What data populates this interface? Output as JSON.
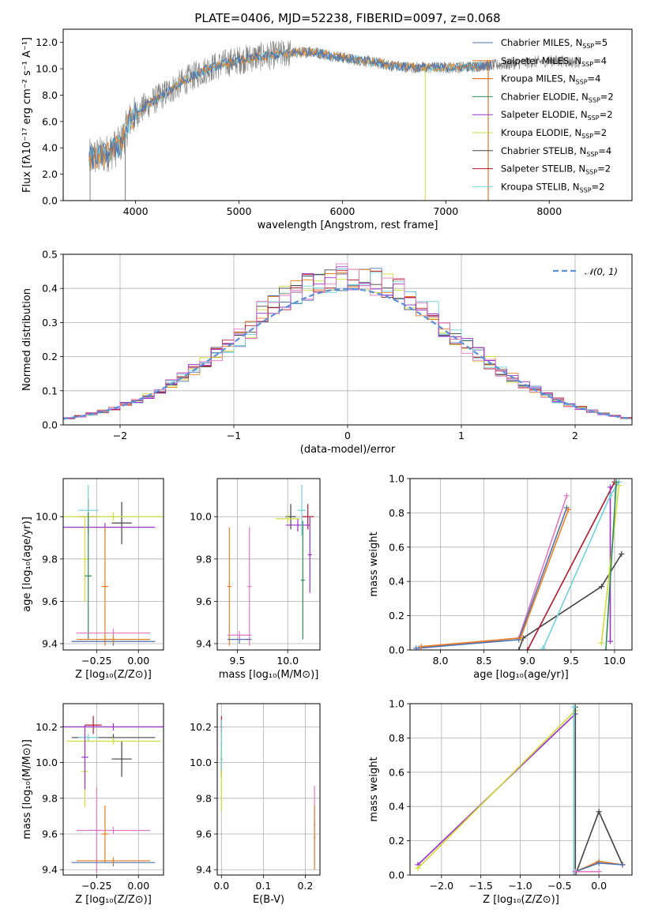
{
  "figure": {
    "title": "PLATE=0406, MJD=52238, FIBERID=0097, z=0.068"
  },
  "colors": {
    "data": "#808080",
    "Chabrier MILES": "#4c72b0",
    "Salpeter MILES": "#e67e22",
    "Kroupa MILES": "#d55e00",
    "Chabrier ELODIE": "#2e8b57",
    "Salpeter ELODIE": "#9b30c8",
    "Kroupa ELODIE": "#cddc39",
    "Chabrier STELIB": "#444444",
    "Salpeter STELIB": "#b2182b",
    "Kroupa STELIB": "#6fd0dc",
    "pink": "#e377c2",
    "normal": "#5b8fd6"
  },
  "chart_data": [
    {
      "id": "spectrum",
      "type": "line",
      "title": "PLATE=0406, MJD=52238, FIBERID=0097, z=0.068",
      "xlabel": "wavelength [Angstrom, rest frame]",
      "ylabel": "Flux [fλ10⁻¹⁷ erg cm⁻² s⁻¹ A⁻¹]",
      "xlim": [
        3300,
        8800
      ],
      "ylim": [
        0,
        13
      ],
      "xticks": [
        4000,
        5000,
        6000,
        7000,
        8000
      ],
      "yticks": [
        0,
        2,
        4,
        6,
        8,
        10,
        12
      ],
      "grid": false,
      "legend_position": "top-right",
      "continuum": [
        [
          3550,
          3.2
        ],
        [
          3700,
          3.5
        ],
        [
          3850,
          4.2
        ],
        [
          3950,
          6.2
        ],
        [
          4100,
          7.2
        ],
        [
          4300,
          8.2
        ],
        [
          4500,
          9.2
        ],
        [
          4700,
          10.0
        ],
        [
          4900,
          10.5
        ],
        [
          5100,
          10.8
        ],
        [
          5300,
          11.0
        ],
        [
          5500,
          11.2
        ],
        [
          5700,
          11.3
        ],
        [
          5900,
          11.0
        ],
        [
          6100,
          10.7
        ],
        [
          6300,
          10.5
        ],
        [
          6500,
          10.2
        ],
        [
          6700,
          10.1
        ],
        [
          6900,
          10.1
        ],
        [
          7100,
          10.1
        ],
        [
          7300,
          10.2
        ],
        [
          7500,
          10.3
        ],
        [
          7700,
          10.4
        ],
        [
          8000,
          10.6
        ],
        [
          8300,
          10.5
        ]
      ],
      "legend": [
        {
          "label": "Chabrier MILES, N",
          "sub": "SSP",
          "suffix": "=5",
          "color": "Chabrier MILES"
        },
        {
          "label": "Salpeter MILES, N",
          "sub": "SSP",
          "suffix": "=4",
          "color": "Salpeter MILES"
        },
        {
          "label": "Kroupa MILES, N",
          "sub": "SSP",
          "suffix": "=4",
          "color": "Kroupa MILES"
        },
        {
          "label": "Chabrier ELODIE, N",
          "sub": "SSP",
          "suffix": "=2",
          "color": "Chabrier ELODIE"
        },
        {
          "label": "Salpeter ELODIE, N",
          "sub": "SSP",
          "suffix": "=2",
          "color": "Salpeter ELODIE"
        },
        {
          "label": "Kroupa ELODIE, N",
          "sub": "SSP",
          "suffix": "=2",
          "color": "Kroupa ELODIE"
        },
        {
          "label": "Chabrier STELIB, N",
          "sub": "SSP",
          "suffix": "=4",
          "color": "Chabrier STELIB"
        },
        {
          "label": "Salpeter STELIB, N",
          "sub": "SSP",
          "suffix": "=2",
          "color": "Salpeter STELIB"
        },
        {
          "label": "Kroupa STELIB, N",
          "sub": "SSP",
          "suffix": "=2",
          "color": "Kroupa STELIB"
        }
      ]
    },
    {
      "id": "residuals",
      "type": "histogram",
      "xlabel": "(data-model)/error",
      "ylabel": "Normed distribution",
      "xlim": [
        -2.5,
        2.5
      ],
      "ylim": [
        0,
        0.5
      ],
      "xticks": [
        -2,
        -1,
        0,
        1,
        2
      ],
      "xticklabels": [
        "−2",
        "−1",
        "0",
        "1",
        "2"
      ],
      "yticks": [
        0.0,
        0.1,
        0.2,
        0.3,
        0.4,
        0.5
      ],
      "grid": true,
      "legend_position": "top-right",
      "legend_label": "𝒩(0, 1)",
      "bin_width": 0.1,
      "series_colors": [
        "Chabrier MILES",
        "Salpeter MILES",
        "Kroupa ELODIE",
        "Chabrier STELIB",
        "Salpeter STELIB",
        "Kroupa STELIB",
        "Salpeter ELODIE",
        "pink"
      ]
    },
    {
      "id": "age-vs-Z",
      "type": "scatter",
      "xlabel": "Z [log₁₀(Z/Z⊙)]",
      "ylabel": "age  [log₁₀(age/yr)]",
      "xlim": [
        -0.45,
        0.15
      ],
      "ylim": [
        9.37,
        10.18
      ],
      "xticks": [
        -0.25,
        0.0
      ],
      "xticklabels": [
        "−0.25",
        "0.00"
      ],
      "yticks": [
        9.4,
        9.6,
        9.8,
        10.0
      ],
      "yticklabels": [
        "9.4",
        "9.6",
        "9.8",
        "10.0"
      ],
      "grid": true,
      "points": [
        {
          "x": -0.1,
          "y": 9.97,
          "xerr": 0.06,
          "yerr": 0.1,
          "color": "Chabrier STELIB"
        },
        {
          "x": -0.3,
          "y": 10.0,
          "xerr": 0.05,
          "yerr": 0.08,
          "color": "Salpeter STELIB"
        },
        {
          "x": -0.2,
          "y": 9.95,
          "xerr": 0.3,
          "yerr": 0.02,
          "color": "Salpeter ELODIE"
        },
        {
          "x": -0.15,
          "y": 10.0,
          "xerr": 0.3,
          "yerr": 0.02,
          "color": "Kroupa ELODIE"
        },
        {
          "x": -0.3,
          "y": 10.03,
          "xerr": 0.06,
          "yerr": 0.12,
          "color": "Kroupa STELIB"
        },
        {
          "x": -0.32,
          "y": 9.8,
          "xerr": 0.02,
          "yerr": 0.2,
          "color": "Kroupa ELODIE"
        },
        {
          "x": -0.3,
          "y": 9.72,
          "xerr": 0.02,
          "yerr": 0.3,
          "color": "Chabrier ELODIE"
        },
        {
          "x": -0.2,
          "y": 9.67,
          "xerr": 0.02,
          "yerr": 0.28,
          "color": "Salpeter MILES"
        },
        {
          "x": -0.15,
          "y": 9.45,
          "xerr": 0.22,
          "yerr": 0.02,
          "color": "pink"
        },
        {
          "x": -0.15,
          "y": 9.41,
          "xerr": 0.25,
          "yerr": 0.02,
          "color": "Chabrier MILES"
        },
        {
          "x": -0.15,
          "y": 9.42,
          "xerr": 0.22,
          "yerr": 0.02,
          "color": "Salpeter MILES"
        }
      ]
    },
    {
      "id": "age-vs-mass",
      "type": "scatter",
      "xlabel": "mass [log₁₀(M/M⊙)]",
      "ylabel": "",
      "xlim": [
        9.3,
        10.32
      ],
      "ylim": [
        9.37,
        10.18
      ],
      "xticks": [
        9.5,
        10.0
      ],
      "xticklabels": [
        "9.5",
        "10.0"
      ],
      "yticks": [
        9.4,
        9.6,
        9.8,
        10.0
      ],
      "yticklabels": [
        "9.4",
        "9.6",
        "9.8",
        "10.0"
      ],
      "grid": true,
      "points": [
        {
          "x": 10.03,
          "y": 10.0,
          "xerr": 0.05,
          "yerr": 0.06,
          "color": "Chabrier STELIB"
        },
        {
          "x": 10.2,
          "y": 10.0,
          "xerr": 0.06,
          "yerr": 0.06,
          "color": "Salpeter STELIB"
        },
        {
          "x": 10.1,
          "y": 9.96,
          "xerr": 0.12,
          "yerr": 0.03,
          "color": "Salpeter ELODIE"
        },
        {
          "x": 10.0,
          "y": 9.99,
          "xerr": 0.12,
          "yerr": 0.02,
          "color": "Kroupa ELODIE"
        },
        {
          "x": 10.14,
          "y": 10.03,
          "xerr": 0.04,
          "yerr": 0.12,
          "color": "Kroupa STELIB"
        },
        {
          "x": 10.15,
          "y": 9.7,
          "xerr": 0.02,
          "yerr": 0.28,
          "color": "Chabrier ELODIE"
        },
        {
          "x": 10.22,
          "y": 9.82,
          "xerr": 0.02,
          "yerr": 0.18,
          "color": "Salpeter ELODIE"
        },
        {
          "x": 9.42,
          "y": 9.67,
          "xerr": 0.02,
          "yerr": 0.28,
          "color": "Salpeter MILES"
        },
        {
          "x": 9.62,
          "y": 9.67,
          "xerr": 0.02,
          "yerr": 0.28,
          "color": "pink"
        },
        {
          "x": 9.52,
          "y": 9.42,
          "xerr": 0.12,
          "yerr": 0.02,
          "color": "Chabrier MILES"
        },
        {
          "x": 9.52,
          "y": 9.44,
          "xerr": 0.12,
          "yerr": 0.02,
          "color": "pink"
        }
      ]
    },
    {
      "id": "massweight-vs-age",
      "type": "line",
      "xlabel": "age  [log₁₀(age/yr)]",
      "ylabel": "mass weight",
      "xlim": [
        7.65,
        10.2
      ],
      "ylim": [
        0,
        1.0
      ],
      "xticks": [
        8.0,
        8.5,
        9.0,
        9.5,
        10.0
      ],
      "xticklabels": [
        "8.0",
        "8.5",
        "9.0",
        "9.5",
        "10.0"
      ],
      "yticks": [
        0.0,
        0.2,
        0.4,
        0.6,
        0.8,
        1.0
      ],
      "yticklabels": [
        "0.0",
        "0.2",
        "0.4",
        "0.6",
        "0.8",
        "1.0"
      ],
      "grid": true,
      "series": [
        {
          "color": "Chabrier STELIB",
          "x": [
            8.9,
            8.95,
            9.85,
            10.08
          ],
          "y": [
            0.0,
            0.07,
            0.37,
            0.56
          ]
        },
        {
          "color": "Salpeter STELIB",
          "x": [
            9.0,
            10.0
          ],
          "y": [
            0.0,
            0.98
          ]
        },
        {
          "color": "Salpeter ELODIE",
          "x": [
            9.95,
            9.95
          ],
          "y": [
            0.05,
            0.95
          ]
        },
        {
          "color": "Kroupa ELODIE",
          "x": [
            9.85,
            10.05
          ],
          "y": [
            0.04,
            0.96
          ]
        },
        {
          "color": "Kroupa STELIB",
          "x": [
            9.18,
            9.95,
            10.05
          ],
          "y": [
            0.01,
            0.9,
            0.98
          ]
        },
        {
          "color": "Chabrier ELODIE",
          "x": [
            9.9,
            10.02
          ],
          "y": [
            0.0,
            0.98
          ]
        },
        {
          "color": "pink",
          "x": [
            7.75,
            8.9,
            9.45
          ],
          "y": [
            0.01,
            0.07,
            0.9
          ]
        },
        {
          "color": "Chabrier MILES",
          "x": [
            7.72,
            8.9,
            9.45
          ],
          "y": [
            0.01,
            0.06,
            0.83
          ]
        },
        {
          "color": "Salpeter MILES",
          "x": [
            7.78,
            8.92,
            9.47
          ],
          "y": [
            0.02,
            0.07,
            0.82
          ]
        }
      ]
    },
    {
      "id": "mass-vs-Z",
      "type": "scatter",
      "xlabel": "Z [log₁₀(Z/Z⊙)]",
      "ylabel": "mass [log₁₀(M/M⊙)]",
      "xlim": [
        -0.45,
        0.15
      ],
      "ylim": [
        9.37,
        10.33
      ],
      "xticks": [
        -0.25,
        0.0
      ],
      "xticklabels": [
        "−0.25",
        "0.00"
      ],
      "yticks": [
        9.4,
        9.6,
        9.8,
        10.0,
        10.2
      ],
      "yticklabels": [
        "9.4",
        "9.6",
        "9.8",
        "10.0",
        "10.2"
      ],
      "grid": true,
      "points": [
        {
          "x": -0.1,
          "y": 10.02,
          "xerr": 0.06,
          "yerr": 0.1,
          "color": "Chabrier STELIB"
        },
        {
          "x": -0.27,
          "y": 10.21,
          "xerr": 0.05,
          "yerr": 0.05,
          "color": "Salpeter STELIB"
        },
        {
          "x": -0.15,
          "y": 10.2,
          "xerr": 0.3,
          "yerr": 0.02,
          "color": "Salpeter ELODIE"
        },
        {
          "x": -0.15,
          "y": 10.14,
          "xerr": 0.25,
          "yerr": 0.02,
          "color": "Chabrier STELIB"
        },
        {
          "x": -0.15,
          "y": 10.12,
          "xerr": 0.28,
          "yerr": 0.02,
          "color": "Kroupa ELODIE"
        },
        {
          "x": -0.3,
          "y": 10.14,
          "xerr": 0.06,
          "yerr": 0.02,
          "color": "Kroupa STELIB"
        },
        {
          "x": -0.32,
          "y": 9.95,
          "xerr": 0.02,
          "yerr": 0.2,
          "color": "Kroupa ELODIE"
        },
        {
          "x": -0.32,
          "y": 10.03,
          "xerr": 0.02,
          "yerr": 0.18,
          "color": "Salpeter ELODIE"
        },
        {
          "x": -0.25,
          "y": 9.62,
          "xerr": 0.02,
          "yerr": 0.24,
          "color": "pink"
        },
        {
          "x": -0.15,
          "y": 9.62,
          "xerr": 0.22,
          "yerr": 0.02,
          "color": "pink"
        },
        {
          "x": -0.2,
          "y": 9.6,
          "xerr": 0.02,
          "yerr": 0.16,
          "color": "Salpeter MILES"
        },
        {
          "x": -0.15,
          "y": 9.44,
          "xerr": 0.25,
          "yerr": 0.02,
          "color": "Chabrier MILES"
        },
        {
          "x": -0.15,
          "y": 9.45,
          "xerr": 0.22,
          "yerr": 0.02,
          "color": "Salpeter MILES"
        }
      ]
    },
    {
      "id": "mass-vs-EBV",
      "type": "scatter",
      "xlabel": "E(B-V)",
      "ylabel": "",
      "xlim": [
        -0.01,
        0.235
      ],
      "ylim": [
        9.37,
        10.33
      ],
      "xticks": [
        0.0,
        0.1,
        0.2
      ],
      "xticklabels": [
        "0.0",
        "0.1",
        "0.2"
      ],
      "yticks": [
        9.4,
        9.6,
        9.8,
        10.0,
        10.2
      ],
      "yticklabels": [
        "9.4",
        "9.6",
        "9.8",
        "10.0",
        "10.2"
      ],
      "grid": true,
      "points": [
        {
          "x": 0.0,
          "y": 10.02,
          "xerr": 0.002,
          "yerr": 0.1,
          "color": "Chabrier STELIB"
        },
        {
          "x": 0.0,
          "y": 10.2,
          "xerr": 0.002,
          "yerr": 0.06,
          "color": "Salpeter STELIB"
        },
        {
          "x": 0.0,
          "y": 9.95,
          "xerr": 0.002,
          "yerr": 0.22,
          "color": "Kroupa ELODIE"
        },
        {
          "x": 0.0,
          "y": 10.1,
          "xerr": 0.002,
          "yerr": 0.14,
          "color": "Kroupa STELIB"
        },
        {
          "x": 0.222,
          "y": 9.65,
          "xerr": 0.002,
          "yerr": 0.22,
          "color": "pink"
        },
        {
          "x": 0.222,
          "y": 9.58,
          "xerr": 0.002,
          "yerr": 0.18,
          "color": "Salpeter MILES"
        }
      ]
    },
    {
      "id": "massweight-vs-Z",
      "type": "line",
      "xlabel": "Z [log₁₀(Z/Z⊙)]",
      "ylabel": "mass weight",
      "xlim": [
        -2.4,
        0.42
      ],
      "ylim": [
        0,
        1.0
      ],
      "xticks": [
        -2.0,
        -1.5,
        -1.0,
        -0.5,
        0.0
      ],
      "xticklabels": [
        "−2.0",
        "−1.5",
        "−1.0",
        "−0.5",
        "0.0"
      ],
      "yticks": [
        0.0,
        0.2,
        0.4,
        0.6,
        0.8,
        1.0
      ],
      "yticklabels": [
        "0.0",
        "0.2",
        "0.4",
        "0.6",
        "0.8",
        "1.0"
      ],
      "grid": true,
      "series": [
        {
          "color": "Salpeter ELODIE",
          "x": [
            -2.3,
            -0.3
          ],
          "y": [
            0.06,
            0.94
          ]
        },
        {
          "color": "Kroupa ELODIE",
          "x": [
            -2.3,
            -0.3
          ],
          "y": [
            0.04,
            0.96
          ]
        },
        {
          "color": "Chabrier STELIB",
          "x": [
            -0.3,
            -0.3,
            0.0,
            0.3
          ],
          "y": [
            0.98,
            0.0,
            0.37,
            0.06
          ]
        },
        {
          "color": "Kroupa STELIB",
          "x": [
            -0.32,
            -0.32
          ],
          "y": [
            0.0,
            0.98
          ]
        },
        {
          "color": "Salpeter MILES",
          "x": [
            -0.3,
            0.0,
            0.3
          ],
          "y": [
            0.02,
            0.08,
            0.06
          ]
        },
        {
          "color": "Chabrier MILES",
          "x": [
            -0.3,
            0.0,
            0.3
          ],
          "y": [
            0.02,
            0.07,
            0.06
          ]
        },
        {
          "color": "pink",
          "x": [
            -0.3,
            0.0
          ],
          "y": [
            0.02,
            0.02
          ]
        }
      ]
    }
  ]
}
